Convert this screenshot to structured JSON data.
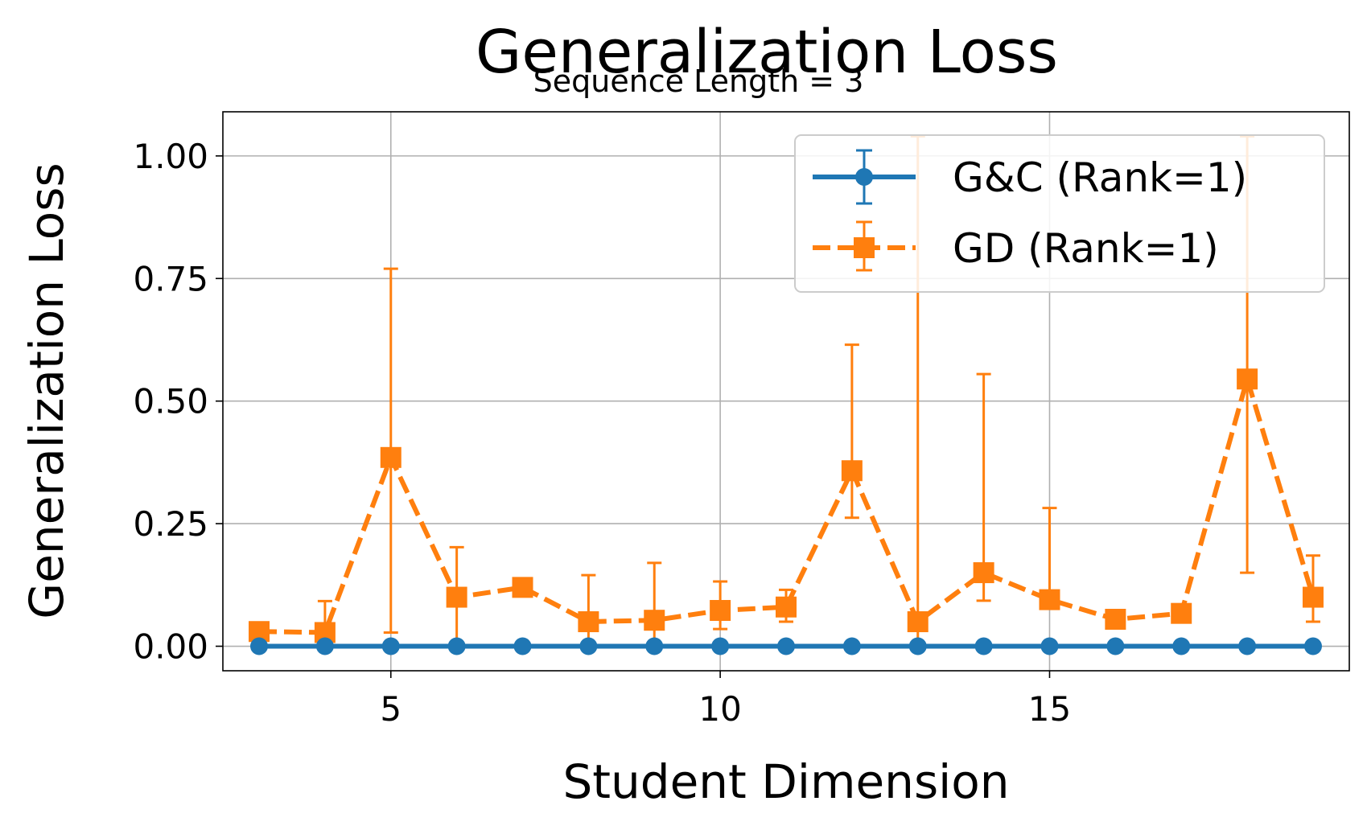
{
  "chart_data": {
    "type": "line",
    "title": "Generalization Loss",
    "subtitle": "Sequence Length = 3",
    "xlabel": "Student Dimension",
    "ylabel": "Generalization Loss",
    "xlim": [
      2.45,
      19.55
    ],
    "ylim": [
      -0.05,
      1.09
    ],
    "xticks": [
      5,
      10,
      15
    ],
    "yticks": [
      0.0,
      0.25,
      0.5,
      0.75,
      1.0
    ],
    "xtick_labels": [
      "5",
      "10",
      "15"
    ],
    "ytick_labels": [
      "0.00",
      "0.25",
      "0.50",
      "0.75",
      "1.00"
    ],
    "grid": true,
    "legend_position": "top-right",
    "x": [
      3,
      4,
      5,
      6,
      7,
      8,
      9,
      10,
      11,
      12,
      13,
      14,
      15,
      16,
      17,
      18,
      19
    ],
    "series": [
      {
        "name": "G&C (Rank=1)",
        "color": "#1f77b4",
        "marker": "circle",
        "line_style": "solid",
        "values": [
          0,
          0,
          0,
          0,
          0,
          0,
          0,
          0,
          0,
          0,
          0,
          0,
          0,
          0,
          0,
          0,
          0
        ],
        "err_low": [
          0,
          0,
          0,
          0,
          0,
          0,
          0,
          0,
          0,
          0,
          0,
          0,
          0,
          0,
          0,
          0,
          0
        ],
        "err_high": [
          0,
          0,
          0,
          0,
          0,
          0,
          0,
          0,
          0,
          0,
          0,
          0,
          0,
          0,
          0,
          0,
          0
        ]
      },
      {
        "name": "GD (Rank=1)",
        "color": "#ff7f0e",
        "marker": "square",
        "line_style": "dashed",
        "values": [
          0.03,
          0.028,
          0.385,
          0.1,
          0.12,
          0.05,
          0.053,
          0.073,
          0.08,
          0.358,
          0.05,
          0.15,
          0.095,
          0.055,
          0.067,
          0.545,
          0.1
        ],
        "err_low": [
          0.03,
          0.028,
          0.028,
          0.0,
          0.12,
          0.0,
          0.0,
          0.035,
          0.05,
          0.262,
          0.0,
          0.093,
          0.095,
          0.055,
          0.067,
          0.15,
          0.05
        ],
        "err_high": [
          0.03,
          0.092,
          0.77,
          0.202,
          0.12,
          0.145,
          0.17,
          0.132,
          0.115,
          0.615,
          1.04,
          0.555,
          0.282,
          0.055,
          0.067,
          1.04,
          0.185
        ]
      }
    ]
  }
}
